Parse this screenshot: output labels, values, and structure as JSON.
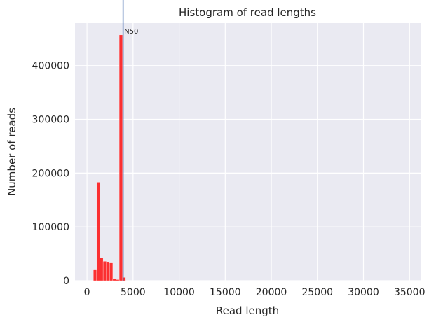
{
  "chart_data": {
    "type": "bar",
    "title": "Histogram of read lengths",
    "xlabel": "Read length",
    "ylabel": "Number of reads",
    "xlim": [
      -1300,
      36200
    ],
    "ylim": [
      0,
      479000
    ],
    "xticks": [
      0,
      5000,
      10000,
      15000,
      20000,
      25000,
      30000,
      35000
    ],
    "yticks": [
      0,
      100000,
      200000,
      300000,
      400000
    ],
    "grid": true,
    "bin_width": 350,
    "bars": [
      {
        "x": 700,
        "value": 20000
      },
      {
        "x": 1050,
        "value": 183000
      },
      {
        "x": 1400,
        "value": 42000
      },
      {
        "x": 1750,
        "value": 36000
      },
      {
        "x": 2100,
        "value": 34000
      },
      {
        "x": 2450,
        "value": 33000
      },
      {
        "x": 2800,
        "value": 4000
      },
      {
        "x": 3150,
        "value": 2000
      },
      {
        "x": 3500,
        "value": 457000
      },
      {
        "x": 3850,
        "value": 6000
      }
    ],
    "bar_color": "#ff0000",
    "vline": {
      "x": 3920,
      "label": "N50",
      "color": "#4c72b0"
    }
  }
}
